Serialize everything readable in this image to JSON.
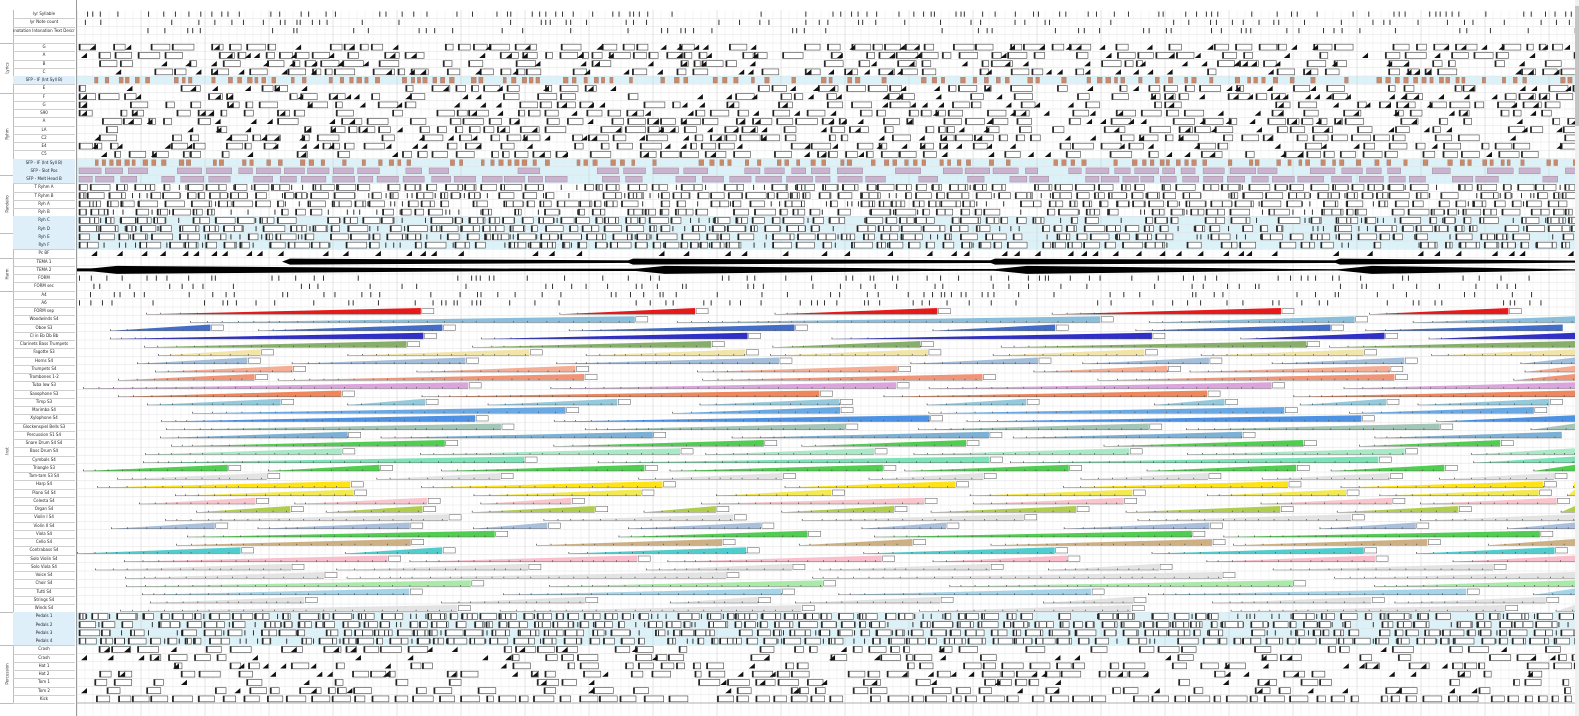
{
  "window": {
    "title": ""
  },
  "label_groups": [
    {
      "id": "g0",
      "label": "",
      "start": 0,
      "end": 3
    },
    {
      "id": "g1",
      "label": "Lyrics",
      "start": 4,
      "end": 9
    },
    {
      "id": "g2",
      "label": "Ryhm",
      "start": 10,
      "end": 19
    },
    {
      "id": "g3",
      "label": "Pandeiro",
      "start": 20,
      "end": 26
    },
    {
      "id": "g4",
      "label": "",
      "start": 27,
      "end": 29
    },
    {
      "id": "g5",
      "label": "Harm",
      "start": 30,
      "end": 33
    },
    {
      "id": "g6",
      "label": "Inst",
      "start": 34,
      "end": 72
    },
    {
      "id": "g7",
      "label": "",
      "start": 73,
      "end": 76
    },
    {
      "id": "g8",
      "label": "Percussion",
      "start": 77,
      "end": 83
    }
  ],
  "rows": [
    {
      "label": "lyr Syllable",
      "hl": false
    },
    {
      "label": "lyr Note count",
      "hl": false
    },
    {
      "label": "Lyr Annotation Intonation Text Description",
      "hl": false
    },
    {
      "label": "",
      "hl": false
    },
    {
      "label": "G",
      "hl": false
    },
    {
      "label": "A",
      "hl": false
    },
    {
      "label": "B",
      "hl": false
    },
    {
      "label": "C",
      "hl": false
    },
    {
      "label": "SFP - IF (Int Syll B)",
      "hl": true
    },
    {
      "label": "E",
      "hl": false
    },
    {
      "label": "F",
      "hl": false
    },
    {
      "label": "G",
      "hl": false
    },
    {
      "label": "S90",
      "hl": false
    },
    {
      "label": "A",
      "hl": false
    },
    {
      "label": "LA",
      "hl": false
    },
    {
      "label": "C2",
      "hl": false
    },
    {
      "label": "E4",
      "hl": false
    },
    {
      "label": "C5",
      "hl": false
    },
    {
      "label": "SFP - IF (Int Syll B)",
      "hl": true
    },
    {
      "label": "SFP - Slot Pos",
      "hl": true
    },
    {
      "label": "SFP - Melt Head B",
      "hl": true
    },
    {
      "label": "T Ryhm A",
      "hl": false
    },
    {
      "label": "T Ryhm B",
      "hl": false
    },
    {
      "label": "Ryh A",
      "hl": false
    },
    {
      "label": "Ryh B",
      "hl": false
    },
    {
      "label": "Ryh C",
      "hl": true
    },
    {
      "label": "Ryh D",
      "hl": true
    },
    {
      "label": "Ryh E",
      "hl": true
    },
    {
      "label": "Ryh F",
      "hl": true
    },
    {
      "label": "Pc BF",
      "hl": false
    },
    {
      "label": "TEMA 1",
      "hl": false
    },
    {
      "label": "TEMA 2",
      "hl": false
    },
    {
      "label": "FORM",
      "hl": false
    },
    {
      "label": "FORM sec",
      "hl": false
    },
    {
      "label": "A4",
      "hl": false
    },
    {
      "label": "A6",
      "hl": false
    },
    {
      "label": "FORM sep",
      "hl": false
    },
    {
      "label": "Woodwinds S4",
      "hl": false
    },
    {
      "label": "Oboe S3",
      "hl": false
    },
    {
      "label": "Cl in Eb Db Bb",
      "hl": false
    },
    {
      "label": "Clarinets Bass Trumpets",
      "hl": false
    },
    {
      "label": "Fagotte S3",
      "hl": false
    },
    {
      "label": "Horns S4",
      "hl": false
    },
    {
      "label": "Trumpets S4",
      "hl": false
    },
    {
      "label": "Trombones 1-2",
      "hl": false
    },
    {
      "label": "Tuba low S3",
      "hl": false
    },
    {
      "label": "Saxophone S3",
      "hl": false
    },
    {
      "label": "Timp S3",
      "hl": false
    },
    {
      "label": "Marimba S4",
      "hl": false
    },
    {
      "label": "Xylophone S4",
      "hl": false
    },
    {
      "label": "Glockenspiel Bells S3",
      "hl": false
    },
    {
      "label": "Percussion S1 S4",
      "hl": false
    },
    {
      "label": "Snare Drum S4 S4",
      "hl": false
    },
    {
      "label": "Bass Drum S4",
      "hl": false
    },
    {
      "label": "Cymbals S4",
      "hl": false
    },
    {
      "label": "Triangle S3",
      "hl": false
    },
    {
      "label": "Tam-tam S3 S4",
      "hl": false
    },
    {
      "label": "Harp S4",
      "hl": false
    },
    {
      "label": "Piano S4 S4",
      "hl": false
    },
    {
      "label": "Celesta S4",
      "hl": false
    },
    {
      "label": "Organ S4",
      "hl": false
    },
    {
      "label": "Violin I S4",
      "hl": false
    },
    {
      "label": "Violin II S4",
      "hl": false
    },
    {
      "label": "Viola S4",
      "hl": false
    },
    {
      "label": "Cello S4",
      "hl": false
    },
    {
      "label": "Contrabass S4",
      "hl": false
    },
    {
      "label": "Solo Violin S4",
      "hl": false
    },
    {
      "label": "Solo Viola S4",
      "hl": false
    },
    {
      "label": "Voice S4",
      "hl": false
    },
    {
      "label": "Choir S4",
      "hl": false
    },
    {
      "label": "Tutti S4",
      "hl": false
    },
    {
      "label": "Strings S4",
      "hl": false
    },
    {
      "label": "Winds S4",
      "hl": false
    },
    {
      "label": "Pedals 1",
      "hl": true
    },
    {
      "label": "Pedals 2",
      "hl": true
    },
    {
      "label": "Pedals 3",
      "hl": true
    },
    {
      "label": "Pedals 4",
      "hl": true
    },
    {
      "label": "Crash",
      "hl": false
    },
    {
      "label": "Crash",
      "hl": false
    },
    {
      "label": "Hat 1",
      "hl": false
    },
    {
      "label": "Hat 2",
      "hl": false
    },
    {
      "label": "Tom 1",
      "hl": false
    },
    {
      "label": "Tom 2",
      "hl": false
    },
    {
      "label": "Kick",
      "hl": false
    }
  ],
  "track_colors": {
    "syllable_fill": "#c98a6a",
    "lavender": "#c9b3cf",
    "highlight_band": "#daf2f8",
    "form_line": "#000000",
    "inst": [
      "#e60000",
      "#7db8d8",
      "#2e5ec4",
      "#1919c2",
      "#7aa55a",
      "#f0e2a0",
      "#9ab8d6",
      "#f4a58a",
      "#f08a6a",
      "#d89ad8",
      "#ee7a4a",
      "#88c4d8",
      "#5aa0e0",
      "#3a86e0",
      "#9ac0b0",
      "#6ea8d0",
      "#3ec83e",
      "#9ee8c0",
      "#6ee0b0",
      "#3ec83e",
      "#e0e0e0",
      "#ffe000",
      "#f2e840",
      "#f8c0c8",
      "#a8c838",
      "#e0e0e0",
      "#a0b8d8",
      "#3ec83e",
      "#c8a878",
      "#3ec8c8",
      "#f8b8c8",
      "#e0e0e0",
      "#e0e0e0",
      "#a0e8a0",
      "#9ad0e8",
      "#e0e0e0",
      "#e0e0e0",
      "#e0e0e0",
      "#e0e0e0"
    ]
  }
}
